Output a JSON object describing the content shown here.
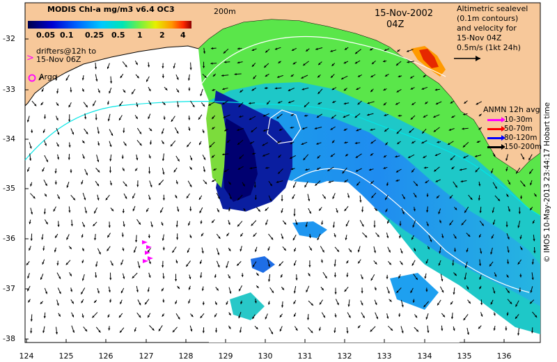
{
  "colorbar": {
    "title": "MODIS Chl-a mg/m3 v6.4 OC3",
    "ticks": [
      "0.05",
      "0.1",
      "0.25",
      "0.5",
      "1",
      "2",
      "4"
    ],
    "colors": [
      "#00005a",
      "#0000c8",
      "#0050ff",
      "#00b4ff",
      "#00e6c8",
      "#64f050",
      "#e6f000",
      "#ffa000",
      "#ff3c00",
      "#8c0000"
    ]
  },
  "drifters": {
    "line1": "drifters@12h to",
    "line2": "15-Nov 06Z",
    "marker": ">",
    "color": "#ff00ff"
  },
  "argo": {
    "label": "Argo",
    "color": "#ff00ff"
  },
  "contour_label": "200m",
  "date": {
    "day": "15-Nov-2002",
    "time": "04Z"
  },
  "altimetry": {
    "line1": "Altimetric sealevel",
    "line2": "(0.1m contours)",
    "line3": "and velocity for",
    "line4": "15-Nov 04Z",
    "scale": "0.5m/s (1kt 24h)"
  },
  "anmn": {
    "title": "ANMN 12h avg",
    "items": [
      {
        "label": "10-30m",
        "color": "#ff00ff"
      },
      {
        "label": "50-70m",
        "color": "#ff0000"
      },
      {
        "label": "80-120m",
        "color": "#0000ff"
      },
      {
        "label": "150-200m",
        "color": "#000000"
      }
    ]
  },
  "axes": {
    "lat_ticks": [
      "-32",
      "-33",
      "-34",
      "-35",
      "-36",
      "-37",
      "-38"
    ],
    "lon_ticks": [
      "124",
      "125",
      "126",
      "127",
      "128",
      "129",
      "130",
      "131",
      "132",
      "133",
      "134",
      "135",
      "136"
    ]
  },
  "credit": "© IMOS 10-May-2013 23:44:17 Hobart time",
  "colors": {
    "land": "#f7c89a",
    "ocean": "#ffffff",
    "contour": "#00e6e6",
    "sealevel_contour": "#ffffff"
  }
}
